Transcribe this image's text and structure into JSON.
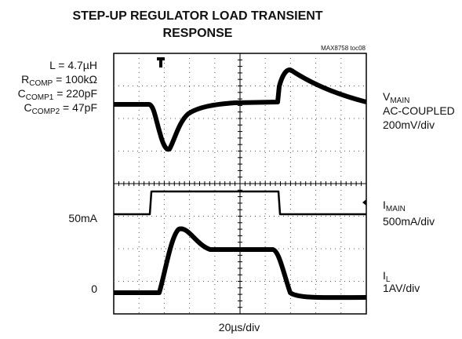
{
  "chart_data": {
    "type": "oscilloscope",
    "title": [
      "STEP-UP REGULATOR LOAD TRANSIENT",
      "RESPONSE"
    ],
    "figure_id": "MAX8758 toc08",
    "conditions": [
      {
        "text": "L = 4.7µH"
      },
      {
        "text": "R",
        "sub": "COMP",
        "rest": " = 100kΩ"
      },
      {
        "text": "C",
        "sub": "COMP1",
        "rest": " = 220pF"
      },
      {
        "text": "C",
        "sub": "COMP2",
        "rest": " = 47pF"
      }
    ],
    "channels": [
      {
        "name": "V",
        "sub": "MAIN",
        "lines": [
          "AC-COUPLED",
          "200mV/div"
        ]
      },
      {
        "name": "I",
        "sub": "MAIN",
        "lines": [
          "500mA/div"
        ]
      },
      {
        "name": "I",
        "sub": "L",
        "lines": [
          "1AV/div"
        ]
      }
    ],
    "level_labels": [
      "50mA",
      "0"
    ],
    "time_scale": "20µs/div"
  }
}
